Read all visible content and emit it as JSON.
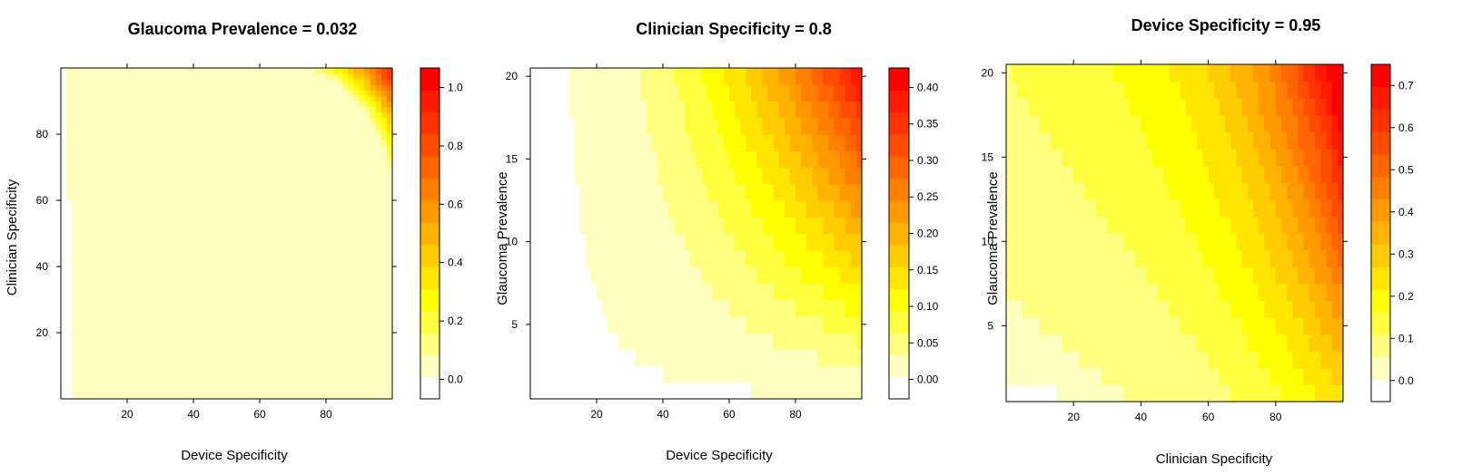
{
  "chart_data": [
    {
      "type": "heatmap",
      "title": "Glaucoma Prevalence =  0.032",
      "xlabel": "Device Specificity",
      "ylabel": "Clinician Specificity",
      "xlim": [
        0,
        100
      ],
      "ylim": [
        0,
        100
      ],
      "x_ticks": [
        "20",
        "40",
        "60",
        "80"
      ],
      "y_ticks": [
        "20",
        "40",
        "60",
        "80"
      ],
      "legend_position": "right",
      "colorkey_range": [
        -0.067,
        1.067
      ],
      "colorkey_ticks": [
        "0.0",
        "0.2",
        "0.4",
        "0.6",
        "0.8",
        "1.0"
      ],
      "model": {
        "kind": "quadrant",
        "bin_width": 0.0667
      },
      "notes_visible_regions": {
        "max_at_corner": 1.0
      }
    },
    {
      "type": "heatmap",
      "title": "Clinician Specificity =  0.8",
      "xlabel": "Device Specificity",
      "ylabel": "Glaucoma Prevalence",
      "xlim": [
        0,
        100
      ],
      "ylim": [
        0.5,
        20.5
      ],
      "x_ticks": [
        "20",
        "40",
        "60",
        "80"
      ],
      "y_ticks": [
        "5",
        "10",
        "15",
        "20"
      ],
      "legend_position": "right",
      "colorkey_range": [
        -0.0267,
        0.4267
      ],
      "colorkey_ticks": [
        "0.00",
        "0.05",
        "0.10",
        "0.15",
        "0.20",
        "0.25",
        "0.30",
        "0.35",
        "0.40"
      ],
      "model": {
        "kind": "product",
        "k": 0.4,
        "px": 2.2,
        "py": 1.05,
        "bin_width": 0.0267
      }
    },
    {
      "type": "heatmap",
      "title": "Device Specificity =  0.95",
      "xlabel": "Clinician Specificity",
      "ylabel": "Glaucoma Prevalence",
      "xlim": [
        0,
        100
      ],
      "ylim": [
        0.5,
        20.5
      ],
      "x_ticks": [
        "20",
        "40",
        "60",
        "80"
      ],
      "y_ticks": [
        "5",
        "10",
        "15",
        "20"
      ],
      "legend_position": "right",
      "colorkey_range": [
        -0.05,
        0.75
      ],
      "colorkey_ticks": [
        "0.0",
        "0.1",
        "0.2",
        "0.3",
        "0.4",
        "0.5",
        "0.6",
        "0.7"
      ],
      "model": {
        "kind": "steep",
        "bin_width": 0.05
      }
    }
  ],
  "colors": {
    "palette": [
      "#ffffff",
      "#ffffbf",
      "#ffff80",
      "#ffff40",
      "#ffff00",
      "#ffe600",
      "#ffcc00",
      "#ffb300",
      "#ff9900",
      "#ff8000",
      "#ff6600",
      "#ff4d00",
      "#ff3300",
      "#ff1a00",
      "#ff0000"
    ],
    "axis": "#000000"
  }
}
